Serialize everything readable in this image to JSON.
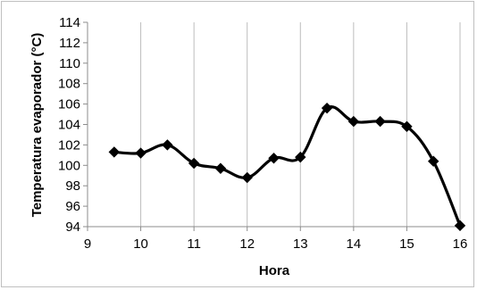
{
  "chart_data": {
    "type": "line",
    "xlabel": "Hora",
    "ylabel": "Temperatura evaporador (°C)",
    "xlim": [
      9,
      16
    ],
    "ylim": [
      94,
      114
    ],
    "xticks": [
      9,
      10,
      11,
      12,
      13,
      14,
      15,
      16
    ],
    "yticks": [
      94,
      96,
      98,
      100,
      102,
      104,
      106,
      108,
      110,
      112,
      114
    ],
    "grid": "vertical",
    "legend": "none",
    "series": [
      {
        "color": "#000000",
        "marker": "diamond",
        "x": [
          9.5,
          10,
          10.5,
          11,
          11.5,
          12,
          12.5,
          13,
          13.5,
          14,
          14.5,
          15,
          15.5,
          16
        ],
        "y": [
          101.3,
          101.2,
          102.0,
          100.2,
          99.7,
          98.8,
          100.7,
          100.8,
          105.6,
          104.3,
          104.3,
          103.8,
          100.4,
          94.1
        ]
      }
    ]
  }
}
